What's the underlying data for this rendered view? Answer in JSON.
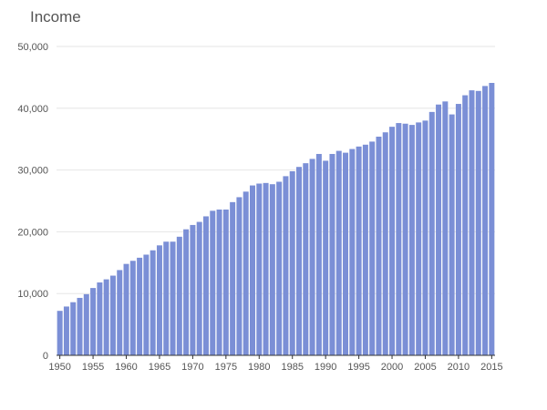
{
  "chart_data": {
    "type": "bar",
    "title": "Income",
    "xlabel": "",
    "ylabel": "",
    "ylim": [
      0,
      50000
    ],
    "yticks": [
      0,
      10000,
      20000,
      30000,
      40000,
      50000
    ],
    "ytick_labels": [
      "0",
      "10,000",
      "20,000",
      "30,000",
      "40,000",
      "50,000"
    ],
    "xticks": [
      1950,
      1955,
      1960,
      1965,
      1970,
      1975,
      1980,
      1985,
      1990,
      1995,
      2000,
      2005,
      2010,
      2015
    ],
    "grid": true,
    "legend": "none",
    "bar_color": "#7b8fd6",
    "categories": [
      1950,
      1951,
      1952,
      1953,
      1954,
      1955,
      1956,
      1957,
      1958,
      1959,
      1960,
      1961,
      1962,
      1963,
      1964,
      1965,
      1966,
      1967,
      1968,
      1969,
      1970,
      1971,
      1972,
      1973,
      1974,
      1975,
      1976,
      1977,
      1978,
      1979,
      1980,
      1981,
      1982,
      1983,
      1984,
      1985,
      1986,
      1987,
      1988,
      1989,
      1990,
      1991,
      1992,
      1993,
      1994,
      1995,
      1996,
      1997,
      1998,
      1999,
      2000,
      2001,
      2002,
      2003,
      2004,
      2005,
      2006,
      2007,
      2008,
      2009,
      2010,
      2011,
      2012,
      2013,
      2014,
      2015
    ],
    "values": [
      7200,
      7900,
      8600,
      9300,
      9900,
      10900,
      11800,
      12300,
      12900,
      13800,
      14800,
      15300,
      15800,
      16300,
      17000,
      17800,
      18400,
      18400,
      19200,
      20400,
      21100,
      21600,
      22500,
      23400,
      23600,
      23600,
      24800,
      25600,
      26500,
      27500,
      27800,
      27900,
      27700,
      28100,
      29000,
      29800,
      30500,
      31100,
      31800,
      32600,
      31500,
      32600,
      33100,
      32800,
      33400,
      33800,
      34100,
      34600,
      35400,
      36100,
      37000,
      37600,
      37500,
      37300,
      37700,
      38000,
      39400,
      40600,
      41100,
      39000,
      40700,
      42100,
      42900,
      42800,
      43600,
      44100
    ]
  }
}
